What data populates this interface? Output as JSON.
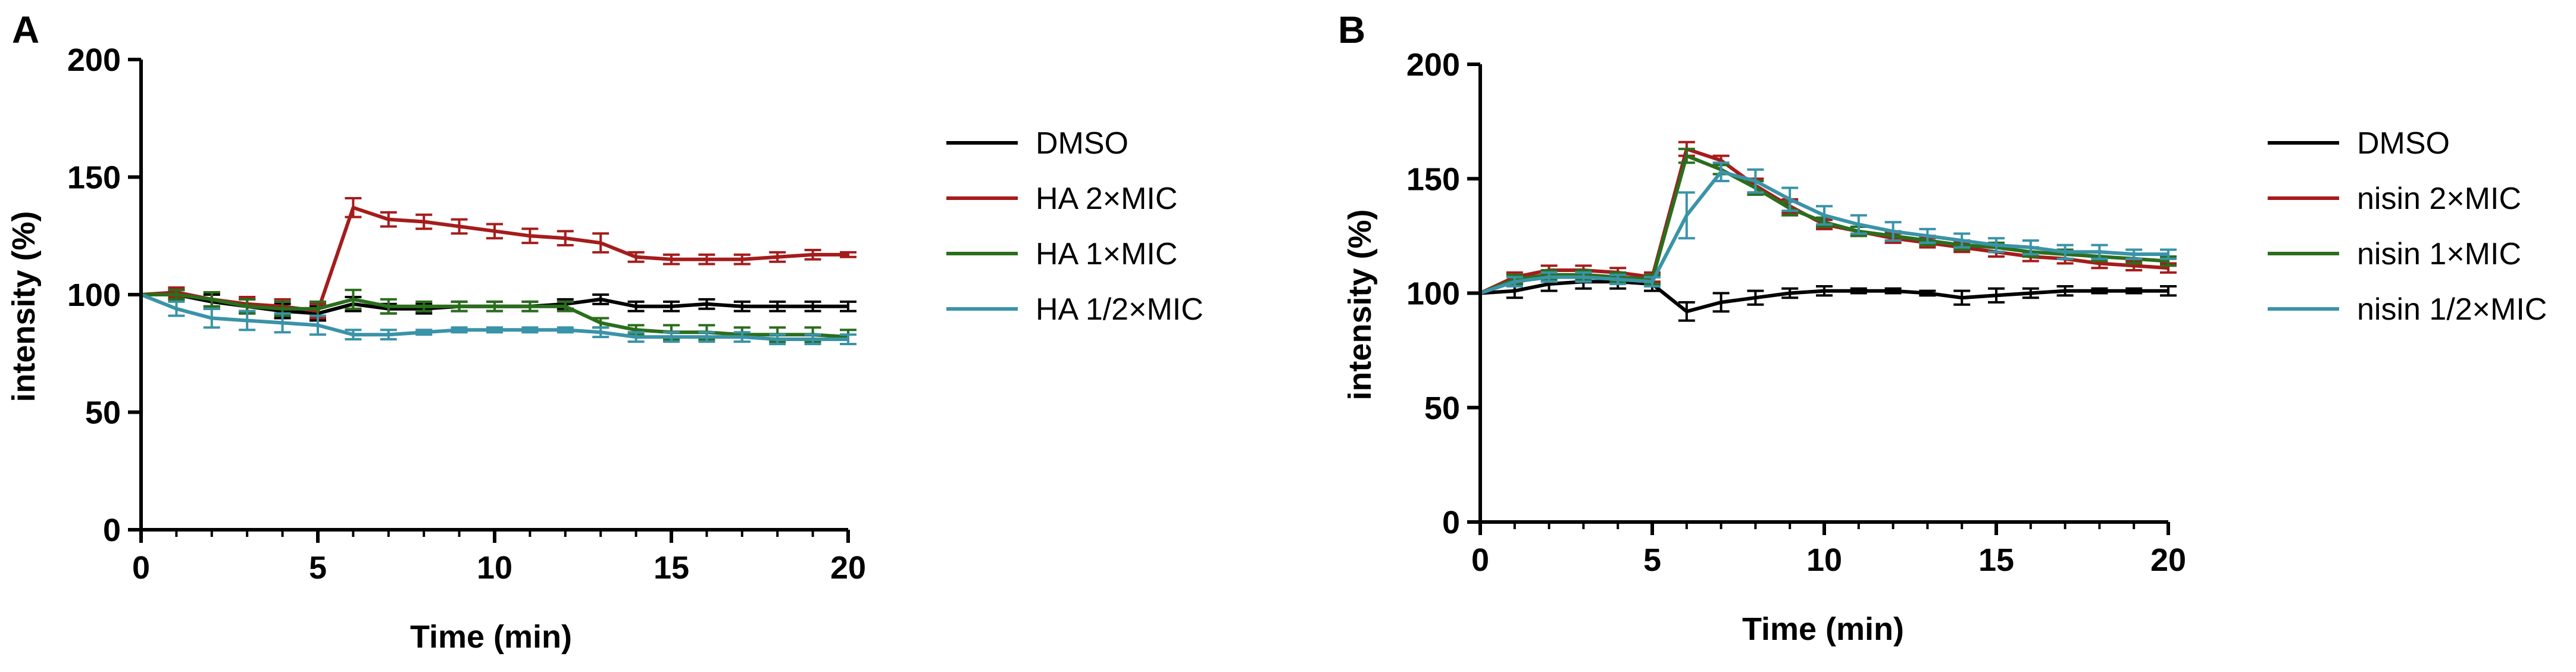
{
  "colors": {
    "DMSO": "#000000",
    "red": "#a51c1c",
    "green": "#2a6e1d",
    "teal": "#3a93a8"
  },
  "chart_data": [
    {
      "panel": "A",
      "type": "line",
      "title": "",
      "xlabel": "Time (min)",
      "ylabel": "intensity (%)",
      "xlim": [
        0,
        20
      ],
      "ylim": [
        0,
        200
      ],
      "xticks": [
        0,
        5,
        10,
        15,
        20
      ],
      "yticks": [
        0,
        50,
        100,
        150,
        200
      ],
      "grid": false,
      "legend_position": "right",
      "x": [
        0,
        1,
        2,
        3,
        4,
        5,
        6,
        7,
        8,
        9,
        10,
        11,
        12,
        13,
        14,
        15,
        16,
        17,
        18,
        19,
        20
      ],
      "series": [
        {
          "name": "DMSO",
          "color": "#000000",
          "values": [
            100,
            100,
            97,
            95,
            93,
            92,
            96,
            94,
            94,
            95,
            95,
            95,
            96,
            98,
            95,
            95,
            96,
            95,
            95,
            95,
            95
          ],
          "errors": [
            0,
            2,
            3,
            3,
            3,
            3,
            3,
            2,
            2,
            2,
            2,
            2,
            2,
            2,
            2,
            2,
            2,
            2,
            2,
            2,
            2
          ]
        },
        {
          "name": "HA 2×MIC",
          "color": "#a51c1c",
          "values": [
            100,
            101,
            98,
            96,
            95,
            93,
            137,
            132,
            131,
            129,
            127,
            125,
            124,
            122,
            116,
            115,
            115,
            115,
            116,
            117,
            117
          ],
          "errors": [
            0,
            2,
            3,
            3,
            3,
            3,
            4,
            3,
            3,
            3,
            3,
            3,
            3,
            4,
            2,
            2,
            2,
            2,
            2,
            2,
            1
          ]
        },
        {
          "name": "HA 1×MIC",
          "color": "#2a6e1d",
          "values": [
            100,
            100,
            98,
            95,
            94,
            94,
            98,
            95,
            95,
            95,
            95,
            95,
            95,
            88,
            85,
            84,
            84,
            83,
            83,
            83,
            82
          ],
          "errors": [
            0,
            2,
            3,
            3,
            3,
            3,
            4,
            3,
            2,
            2,
            2,
            2,
            2,
            2,
            2,
            3,
            3,
            3,
            3,
            3,
            3
          ]
        },
        {
          "name": "HA 1/2×MIC",
          "color": "#3a93a8",
          "values": [
            100,
            94,
            90,
            89,
            88,
            87,
            83,
            83,
            84,
            85,
            85,
            85,
            85,
            84,
            82,
            82,
            82,
            82,
            81,
            81,
            81
          ],
          "errors": [
            0,
            3,
            4,
            4,
            4,
            4,
            2,
            2,
            1,
            1,
            1,
            1,
            1,
            2,
            2,
            2,
            2,
            2,
            2,
            2,
            2
          ]
        }
      ]
    },
    {
      "panel": "B",
      "type": "line",
      "title": "",
      "xlabel": "Time (min)",
      "ylabel": "intensity (%)",
      "xlim": [
        0,
        20
      ],
      "ylim": [
        0,
        200
      ],
      "xticks": [
        0,
        5,
        10,
        15,
        20
      ],
      "yticks": [
        0,
        50,
        100,
        150,
        200
      ],
      "grid": false,
      "legend_position": "right",
      "x": [
        0,
        1,
        2,
        3,
        4,
        5,
        6,
        7,
        8,
        9,
        10,
        11,
        12,
        13,
        14,
        15,
        16,
        17,
        18,
        19,
        20
      ],
      "series": [
        {
          "name": "DMSO",
          "color": "#000000",
          "values": [
            100,
            101,
            104,
            105,
            105,
            104,
            92,
            96,
            98,
            100,
            101,
            101,
            101,
            100,
            98,
            99,
            100,
            101,
            101,
            101,
            101
          ],
          "errors": [
            0,
            3,
            3,
            3,
            3,
            3,
            4,
            4,
            3,
            2,
            2,
            1,
            1,
            1,
            3,
            3,
            2,
            2,
            1,
            1,
            2
          ]
        },
        {
          "name": "nisin 2×MIC",
          "color": "#a51c1c",
          "values": [
            100,
            107,
            110,
            110,
            109,
            107,
            163,
            158,
            147,
            138,
            130,
            127,
            124,
            122,
            120,
            118,
            116,
            115,
            113,
            112,
            111
          ],
          "errors": [
            0,
            2,
            2,
            2,
            2,
            2,
            3,
            2,
            3,
            3,
            2,
            2,
            2,
            2,
            2,
            2,
            2,
            2,
            2,
            2,
            2
          ]
        },
        {
          "name": "nisin 1×MIC",
          "color": "#2a6e1d",
          "values": [
            100,
            106,
            108,
            108,
            107,
            106,
            160,
            154,
            146,
            137,
            131,
            127,
            125,
            123,
            121,
            120,
            118,
            117,
            116,
            115,
            114
          ],
          "errors": [
            0,
            2,
            2,
            2,
            2,
            2,
            3,
            2,
            3,
            3,
            2,
            2,
            2,
            2,
            2,
            2,
            2,
            2,
            2,
            2,
            2
          ]
        },
        {
          "name": "nisin 1/2×MIC",
          "color": "#3a93a8",
          "values": [
            100,
            105,
            107,
            107,
            106,
            105,
            134,
            153,
            149,
            141,
            134,
            130,
            127,
            125,
            123,
            121,
            120,
            118,
            118,
            117,
            117
          ],
          "errors": [
            0,
            2,
            2,
            2,
            2,
            2,
            10,
            4,
            5,
            5,
            4,
            4,
            4,
            3,
            3,
            3,
            3,
            3,
            3,
            2,
            2
          ]
        }
      ]
    }
  ]
}
